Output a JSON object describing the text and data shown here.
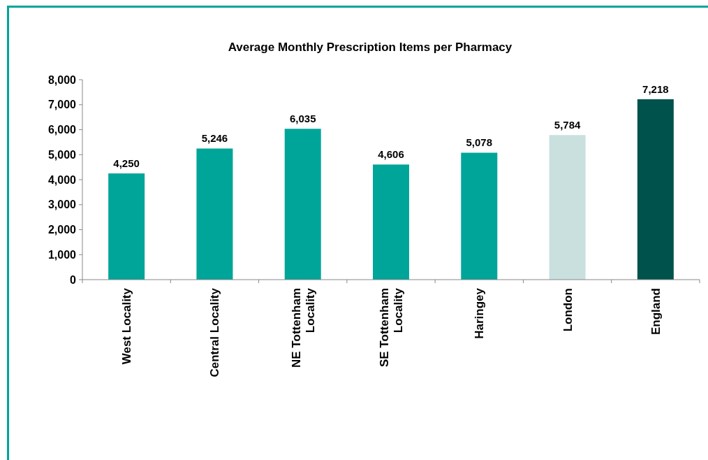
{
  "chart_data": {
    "type": "bar",
    "title": "Average Monthly Prescription Items per Pharmacy",
    "categories": [
      "West Locality",
      "Central Locality",
      "NE Tottenham Locality",
      "SE Tottenham Locality",
      "Haringey",
      "London",
      "England"
    ],
    "values": [
      4250,
      5246,
      6035,
      4606,
      5078,
      5784,
      7218
    ],
    "colors": [
      "#00a599",
      "#00a599",
      "#00a599",
      "#00a599",
      "#00a599",
      "#c9e0df",
      "#00524c"
    ],
    "value_labels": [
      "4,250",
      "5,246",
      "6,035",
      "4,606",
      "5,078",
      "5,784",
      "7,218"
    ],
    "ylim": [
      0,
      8000
    ],
    "yticks": [
      {
        "value": 0,
        "label": "0"
      },
      {
        "value": 1000,
        "label": "1,000"
      },
      {
        "value": 2000,
        "label": "2,000"
      },
      {
        "value": 3000,
        "label": "3,000"
      },
      {
        "value": 4000,
        "label": "4,000"
      },
      {
        "value": 5000,
        "label": "5,000"
      },
      {
        "value": 6000,
        "label": "6,000"
      },
      {
        "value": 7000,
        "label": "7,000"
      },
      {
        "value": 8000,
        "label": "8,000"
      }
    ],
    "grid": false
  }
}
